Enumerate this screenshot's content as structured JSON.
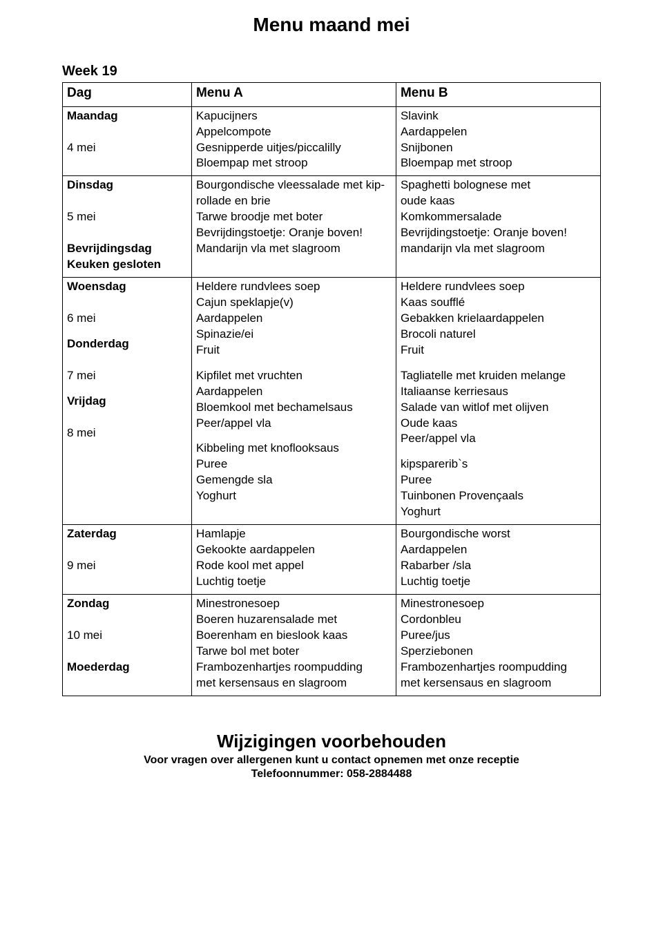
{
  "title": "Menu maand mei",
  "week_label": "Week 19",
  "headers": {
    "col1": "Dag",
    "col2": "Menu A",
    "col3": "Menu B"
  },
  "rows": [
    {
      "day_lines": [
        "Maandag",
        "",
        "4 mei"
      ],
      "day_bold": [
        true,
        false,
        false
      ],
      "a": [
        "Kapucijners",
        "Appelcompote",
        "Gesnipperde uitjes/piccalilly",
        "Bloempap met stroop"
      ],
      "b": [
        "Slavink",
        "Aardappelen",
        "Snijbonen",
        "Bloempap met stroop"
      ]
    },
    {
      "day_lines": [
        "Dinsdag",
        "",
        "5 mei",
        "",
        "Bevrijdingsdag",
        "Keuken gesloten"
      ],
      "day_bold": [
        true,
        false,
        false,
        false,
        true,
        true
      ],
      "a": [
        "Bourgondische vleessalade met kip-",
        "rollade en brie",
        "Tarwe broodje met boter",
        "Bevrijdingstoetje: Oranje boven!",
        "Mandarijn vla met slagroom"
      ],
      "b": [
        "Spaghetti  bolognese met",
        "oude kaas",
        "Komkommersalade",
        "Bevrijdingstoetje: Oranje boven!",
        "mandarijn vla met slagroom"
      ]
    },
    {
      "day_lines": [
        "Woensdag",
        "",
        "6 mei"
      ],
      "day_bold": [
        true,
        false,
        false
      ],
      "a": [
        "Heldere rundvlees soep",
        "Cajun speklapje(v)",
        "Aardappelen",
        "Spinazie/ei",
        "Fruit"
      ],
      "b": [
        "Heldere rundvlees soep",
        "Kaas soufflé",
        "Gebakken krielaardappelen",
        "Brocoli naturel",
        "Fruit"
      ]
    },
    {
      "day_lines": [
        "Donderdag",
        "",
        "7 mei"
      ],
      "day_bold": [
        true,
        false,
        false
      ],
      "a": [
        "Kipfilet met vruchten",
        "Aardappelen",
        "Bloemkool met bechamelsaus",
        "Peer/appel vla"
      ],
      "b": [
        "Tagliatelle met kruiden melange",
        "Italiaanse kerriesaus",
        "Salade van witlof met olijven",
        "Oude kaas",
        "Peer/appel vla"
      ]
    },
    {
      "day_lines": [
        "Vrijdag",
        "",
        "8 mei"
      ],
      "day_bold": [
        true,
        false,
        false
      ],
      "a": [
        "Kibbeling met knoflooksaus",
        "Puree",
        "Gemengde sla",
        "Yoghurt"
      ],
      "b": [
        "kipsparerib`s",
        "Puree",
        "Tuinbonen Provençaals",
        "Yoghurt"
      ]
    },
    {
      "day_lines": [
        "Zaterdag",
        "",
        "9 mei"
      ],
      "day_bold": [
        true,
        false,
        false
      ],
      "a": [
        "Hamlapje",
        "Gekookte aardappelen",
        "Rode kool met appel",
        "Luchtig toetje"
      ],
      "b": [
        "Bourgondische worst",
        "Aardappelen",
        "Rabarber /sla",
        "Luchtig toetje"
      ]
    },
    {
      "day_lines": [
        "Zondag",
        "",
        "10 mei",
        "",
        "Moederdag"
      ],
      "day_bold": [
        true,
        false,
        false,
        false,
        true
      ],
      "a": [
        "Minestronesoep",
        "Boeren huzarensalade met",
        "Boerenham  en bieslook kaas",
        "Tarwe bol met boter",
        "Frambozenhartjes roompudding",
        "met kersensaus en slagroom"
      ],
      "b": [
        "Minestronesoep",
        "Cordonbleu",
        "Puree/jus",
        "Sperziebonen",
        "Frambozenhartjes roompudding",
        "met kersensaus en slagroom"
      ]
    }
  ],
  "row_groups": [
    [
      0
    ],
    [
      1
    ],
    [
      2,
      3,
      4
    ],
    [
      5
    ],
    [
      6
    ]
  ],
  "footer": {
    "main": "Wijzigingen voorbehouden",
    "line1": "Voor vragen over allergenen kunt u contact opnemen met onze receptie",
    "line2": "Telefoonnummer: 058-2884488"
  },
  "colors": {
    "text": "#000000",
    "background": "#ffffff",
    "border": "#000000"
  }
}
